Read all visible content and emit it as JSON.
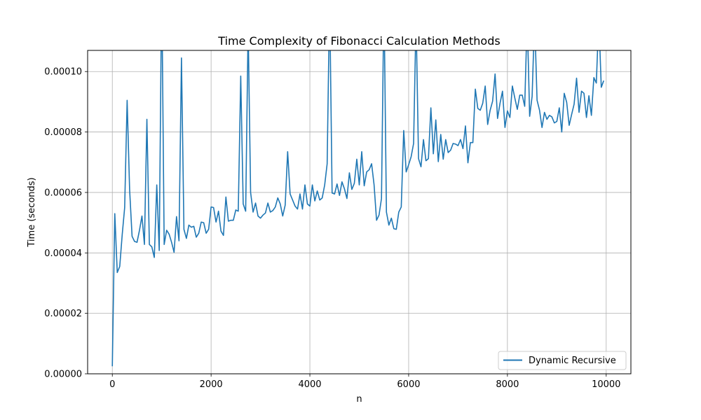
{
  "chart_data": {
    "type": "line",
    "title": "Time Complexity of Fibonacci Calculation Methods",
    "xlabel": "n",
    "ylabel": "Time (seconds)",
    "xlim": [
      -500,
      10500
    ],
    "ylim": [
      0,
      0.000107
    ],
    "grid": true,
    "legend_position": "lower-right",
    "xticks": [
      {
        "value": 0,
        "label": "0"
      },
      {
        "value": 2000,
        "label": "2000"
      },
      {
        "value": 4000,
        "label": "4000"
      },
      {
        "value": 6000,
        "label": "6000"
      },
      {
        "value": 8000,
        "label": "8000"
      },
      {
        "value": 10000,
        "label": "10000"
      }
    ],
    "yticks": [
      {
        "value": 0,
        "label": "0.00000"
      },
      {
        "value": 2e-05,
        "label": "0.00002"
      },
      {
        "value": 4e-05,
        "label": "0.00004"
      },
      {
        "value": 6e-05,
        "label": "0.00006"
      },
      {
        "value": 8e-05,
        "label": "0.00008"
      },
      {
        "value": 0.0001,
        "label": "0.00010"
      }
    ],
    "series": [
      {
        "name": "Dynamic Recursive",
        "color": "#1f77b4",
        "x": [
          0,
          50,
          100,
          150,
          200,
          250,
          300,
          350,
          400,
          450,
          500,
          550,
          600,
          650,
          700,
          750,
          800,
          850,
          900,
          950,
          1000,
          1050,
          1100,
          1150,
          1200,
          1250,
          1300,
          1350,
          1400,
          1450,
          1500,
          1550,
          1600,
          1650,
          1700,
          1750,
          1800,
          1850,
          1900,
          1950,
          2000,
          2050,
          2100,
          2150,
          2200,
          2250,
          2300,
          2350,
          2400,
          2450,
          2500,
          2550,
          2600,
          2650,
          2700,
          2750,
          2800,
          2850,
          2900,
          2950,
          3000,
          3050,
          3100,
          3150,
          3200,
          3250,
          3300,
          3350,
          3400,
          3450,
          3500,
          3550,
          3600,
          3650,
          3700,
          3750,
          3800,
          3850,
          3900,
          3950,
          4000,
          4050,
          4100,
          4150,
          4200,
          4250,
          4300,
          4350,
          4400,
          4450,
          4500,
          4550,
          4600,
          4650,
          4700,
          4750,
          4800,
          4850,
          4900,
          4950,
          5000,
          5050,
          5100,
          5150,
          5200,
          5250,
          5300,
          5350,
          5400,
          5450,
          5500,
          5550,
          5600,
          5650,
          5700,
          5750,
          5800,
          5850,
          5900,
          5950,
          6000,
          6050,
          6100,
          6150,
          6200,
          6250,
          6300,
          6350,
          6400,
          6450,
          6500,
          6550,
          6600,
          6650,
          6700,
          6750,
          6800,
          6850,
          6900,
          6950,
          7000,
          7050,
          7100,
          7150,
          7200,
          7250,
          7300,
          7350,
          7400,
          7450,
          7500,
          7550,
          7600,
          7650,
          7700,
          7750,
          7800,
          7850,
          7900,
          7950,
          8000,
          8050,
          8100,
          8150,
          8200,
          8250,
          8300,
          8350,
          8400,
          8450,
          8500,
          8550,
          8600,
          8650,
          8700,
          8750,
          8800,
          8850,
          8900,
          8950,
          9000,
          9050,
          9100,
          9150,
          9200,
          9250,
          9300,
          9350,
          9400,
          9450,
          9500,
          9550,
          9600,
          9650,
          9700,
          9750,
          9800,
          9850,
          9900,
          9950
        ],
        "y": [
          2.5e-06,
          5.3e-05,
          3.35e-05,
          3.55e-05,
          4.6e-05,
          5.5e-05,
          9.05e-05,
          6.1e-05,
          4.55e-05,
          4.38e-05,
          4.35e-05,
          4.75e-05,
          5.22e-05,
          4.28e-05,
          8.42e-05,
          4.28e-05,
          4.2e-05,
          3.85e-05,
          6.25e-05,
          4.08e-05,
          0.00013,
          4.28e-05,
          4.75e-05,
          4.62e-05,
          4.35e-05,
          4.02e-05,
          5.2e-05,
          4.4e-05,
          0.0001045,
          4.78e-05,
          4.48e-05,
          4.92e-05,
          4.85e-05,
          4.88e-05,
          4.52e-05,
          4.65e-05,
          5.02e-05,
          5e-05,
          4.65e-05,
          4.78e-05,
          5.52e-05,
          5.5e-05,
          5.02e-05,
          5.38e-05,
          4.72e-05,
          4.58e-05,
          5.85e-05,
          5.05e-05,
          5.08e-05,
          5.08e-05,
          5.42e-05,
          5.38e-05,
          9.85e-05,
          5.62e-05,
          5.38e-05,
          0.000115,
          6e-05,
          5.35e-05,
          5.65e-05,
          5.22e-05,
          5.15e-05,
          5.25e-05,
          5.32e-05,
          5.65e-05,
          5.35e-05,
          5.4e-05,
          5.52e-05,
          5.82e-05,
          5.62e-05,
          5.22e-05,
          5.58e-05,
          7.35e-05,
          5.95e-05,
          5.75e-05,
          5.55e-05,
          5.45e-05,
          5.95e-05,
          5.45e-05,
          6.25e-05,
          5.62e-05,
          5.55e-05,
          6.25e-05,
          5.72e-05,
          6.05e-05,
          5.75e-05,
          5.82e-05,
          6.25e-05,
          6.95e-05,
          0.000125,
          5.98e-05,
          5.95e-05,
          6.28e-05,
          5.9e-05,
          6.35e-05,
          6.12e-05,
          5.8e-05,
          6.65e-05,
          6.1e-05,
          6.3e-05,
          7.1e-05,
          6.25e-05,
          7.35e-05,
          6.22e-05,
          6.68e-05,
          6.75e-05,
          6.95e-05,
          6.25e-05,
          5.08e-05,
          5.25e-05,
          5.8e-05,
          0.000125,
          5.35e-05,
          4.92e-05,
          5.15e-05,
          4.8e-05,
          4.78e-05,
          5.35e-05,
          5.52e-05,
          8.05e-05,
          6.68e-05,
          6.92e-05,
          7.18e-05,
          7.62e-05,
          0.000118,
          7.12e-05,
          6.85e-05,
          7.75e-05,
          7.05e-05,
          7.12e-05,
          8.8e-05,
          7.28e-05,
          8.4e-05,
          7.02e-05,
          7.92e-05,
          7.1e-05,
          7.75e-05,
          7.32e-05,
          7.4e-05,
          7.62e-05,
          7.6e-05,
          7.55e-05,
          7.75e-05,
          7.45e-05,
          8.2e-05,
          6.98e-05,
          7.65e-05,
          7.65e-05,
          9.42e-05,
          8.78e-05,
          8.72e-05,
          8.95e-05,
          9.52e-05,
          8.25e-05,
          8.72e-05,
          9.02e-05,
          9.92e-05,
          8.45e-05,
          8.95e-05,
          9.35e-05,
          8.15e-05,
          8.7e-05,
          8.48e-05,
          9.52e-05,
          9.12e-05,
          8.75e-05,
          9.22e-05,
          9.22e-05,
          8.85e-05,
          0.000118,
          8.52e-05,
          9.18e-05,
          0.000118,
          9.05e-05,
          8.72e-05,
          8.15e-05,
          8.65e-05,
          8.42e-05,
          8.55e-05,
          8.5e-05,
          8.3e-05,
          8.35e-05,
          8.8e-05,
          8e-05,
          9.28e-05,
          8.98e-05,
          8.22e-05,
          8.58e-05,
          8.92e-05,
          9.78e-05,
          8.65e-05,
          9.35e-05,
          9.28e-05,
          8.48e-05,
          9.2e-05,
          8.55e-05,
          9.8e-05,
          9.62e-05,
          0.000118,
          9.48e-05,
          9.7e-05
        ]
      }
    ]
  }
}
